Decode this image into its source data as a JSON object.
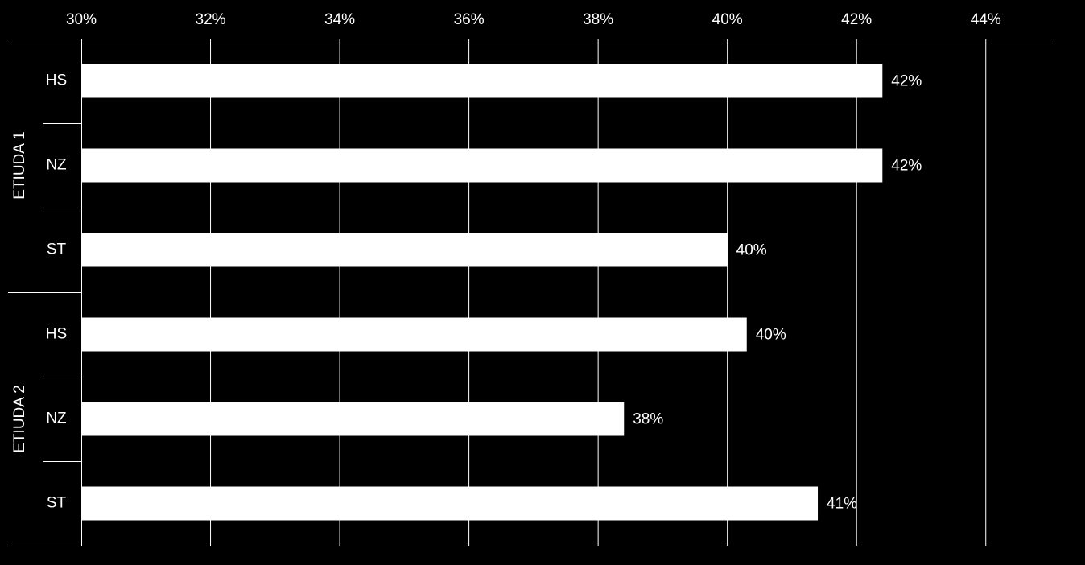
{
  "chart_data": {
    "type": "bar",
    "orientation": "horizontal",
    "color": "#ffffff",
    "grid": true,
    "xlim": [
      30,
      45
    ],
    "xticks": [
      {
        "value": 30,
        "label": "30%"
      },
      {
        "value": 32,
        "label": "32%"
      },
      {
        "value": 34,
        "label": "34%"
      },
      {
        "value": 36,
        "label": "36%"
      },
      {
        "value": 38,
        "label": "38%"
      },
      {
        "value": 40,
        "label": "40%"
      },
      {
        "value": 42,
        "label": "42%"
      },
      {
        "value": 44,
        "label": "44%"
      }
    ],
    "groups": [
      {
        "name": "ETIUDA 1",
        "categories": [
          "HS",
          "NZ",
          "ST"
        ],
        "values": [
          42.4,
          42.4,
          40.0
        ],
        "value_labels": [
          "42%",
          "42%",
          "40%"
        ]
      },
      {
        "name": "ETIUDA 2",
        "categories": [
          "HS",
          "NZ",
          "ST"
        ],
        "values": [
          40.3,
          38.4,
          41.4
        ],
        "value_labels": [
          "40%",
          "38%",
          "41%"
        ]
      }
    ]
  }
}
